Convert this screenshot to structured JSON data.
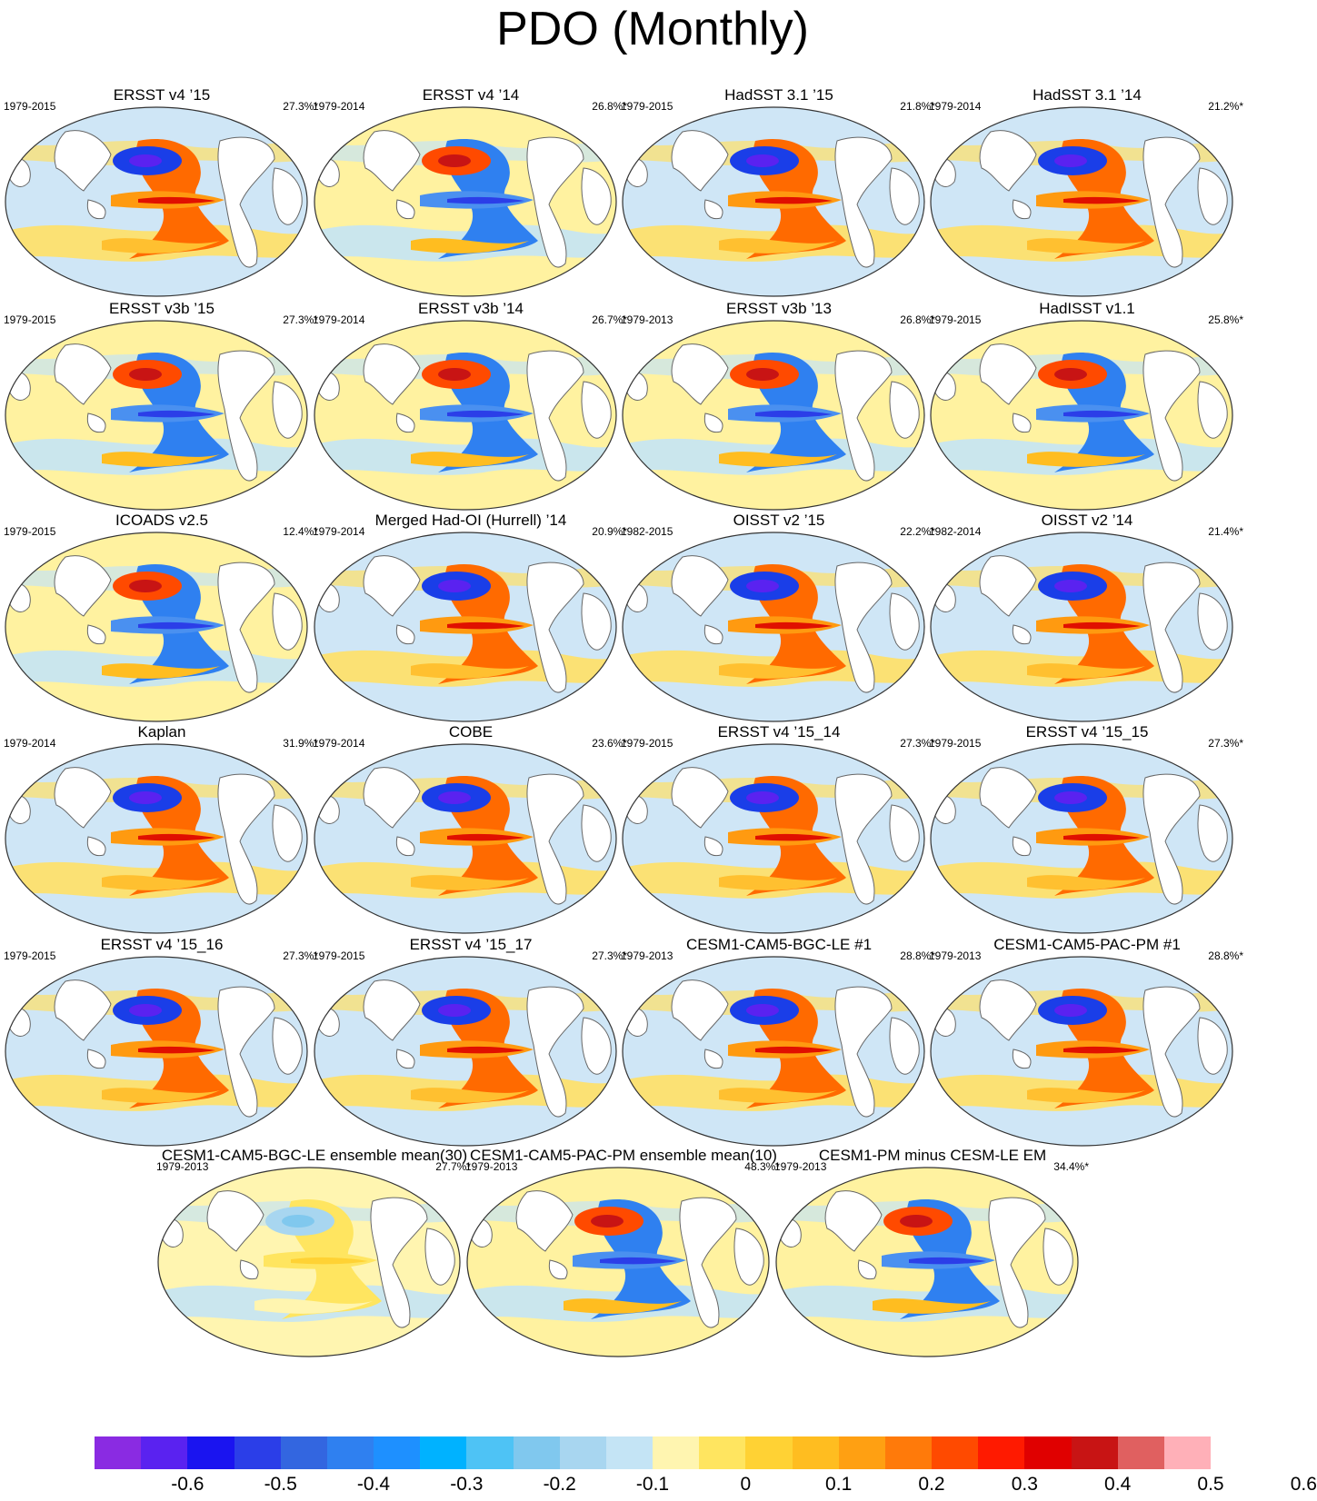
{
  "title": "PDO (Monthly)",
  "panels": [
    {
      "title": "ERSST v4 ’15",
      "years": "1979-2015",
      "pct": "27.3%*",
      "style": 0
    },
    {
      "title": "ERSST v4 ’14",
      "years": "1979-2014",
      "pct": "26.8%*",
      "style": 1
    },
    {
      "title": "HadSST 3.1 ’15",
      "years": "1979-2015",
      "pct": "21.8%*",
      "style": 0
    },
    {
      "title": "HadSST 3.1 ’14",
      "years": "1979-2014",
      "pct": "21.2%*",
      "style": 0
    },
    {
      "title": "ERSST v3b ’15",
      "years": "1979-2015",
      "pct": "27.3%*",
      "style": 1
    },
    {
      "title": "ERSST v3b ’14",
      "years": "1979-2014",
      "pct": "26.7%*",
      "style": 1
    },
    {
      "title": "ERSST v3b ’13",
      "years": "1979-2013",
      "pct": "26.8%*",
      "style": 1
    },
    {
      "title": "HadISST v1.1",
      "years": "1979-2015",
      "pct": "25.8%*",
      "style": 1
    },
    {
      "title": "ICOADS v2.5",
      "years": "1979-2015",
      "pct": "12.4%*",
      "style": 1
    },
    {
      "title": "Merged Had-OI (Hurrell) ’14",
      "years": "1979-2014",
      "pct": "20.9%*",
      "style": 0
    },
    {
      "title": "OISST v2 ’15",
      "years": "1982-2015",
      "pct": "22.2%*",
      "style": 0
    },
    {
      "title": "OISST v2 ’14",
      "years": "1982-2014",
      "pct": "21.4%*",
      "style": 0
    },
    {
      "title": "Kaplan",
      "years": "1979-2014",
      "pct": "31.9%*",
      "style": 0
    },
    {
      "title": "COBE",
      "years": "1979-2014",
      "pct": "23.6%*",
      "style": 0
    },
    {
      "title": "ERSST v4 ’15_14",
      "years": "1979-2015",
      "pct": "27.3%*",
      "style": 0
    },
    {
      "title": "ERSST v4 ’15_15",
      "years": "1979-2015",
      "pct": "27.3%*",
      "style": 0
    },
    {
      "title": "ERSST v4 ’15_16",
      "years": "1979-2015",
      "pct": "27.3%*",
      "style": 0
    },
    {
      "title": "ERSST v4 ’15_17",
      "years": "1979-2015",
      "pct": "27.3%*",
      "style": 0
    },
    {
      "title": "CESM1-CAM5-BGC-LE #1",
      "years": "1979-2013",
      "pct": "28.8%*",
      "style": 0
    },
    {
      "title": "CESM1-CAM5-PAC-PM #1",
      "years": "1979-2013",
      "pct": "28.8%*",
      "style": 0
    },
    {
      "title": "CESM1-CAM5-BGC-LE ensemble mean(30)",
      "years": "1979-2013",
      "pct": "27.7%*",
      "style": 2
    },
    {
      "title": "CESM1-CAM5-PAC-PM ensemble mean(10)",
      "years": "1979-2013",
      "pct": "48.3%*",
      "style": 1
    },
    {
      "title": "CESM1-PM minus CESM-LE EM",
      "years": "1979-2013",
      "pct": "34.4%*",
      "style": 1
    }
  ],
  "colorbar": {
    "colors": [
      "#8a2be2",
      "#5a22f0",
      "#1a14f0",
      "#2b3ee8",
      "#3366e0",
      "#2f80f0",
      "#1e90ff",
      "#00b2ff",
      "#4ec3f5",
      "#80c8ee",
      "#a8d6f0",
      "#c4e4f5",
      "#fff5b0",
      "#ffe560",
      "#ffd234",
      "#ffbd20",
      "#ffa012",
      "#ff7a0a",
      "#ff4a00",
      "#ff1a00",
      "#e00000",
      "#c81414",
      "#e06060",
      "#ffb0b8"
    ],
    "tick_labels": [
      "-0.6",
      "-0.5",
      "-0.4",
      "-0.3",
      "-0.2",
      "-0.1",
      "0",
      "0.1",
      "0.2",
      "0.3",
      "0.4",
      "0.5",
      "0.6"
    ]
  }
}
